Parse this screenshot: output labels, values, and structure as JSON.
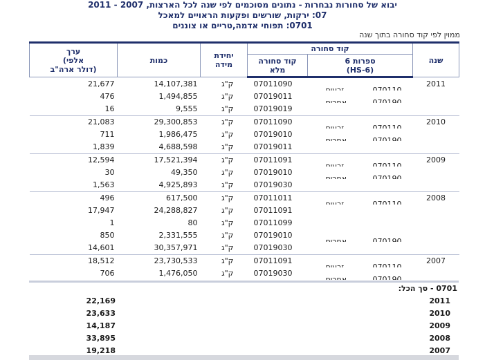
{
  "titles": {
    "line1": "יבוא של סחורות נבחרות - נתונים מסוכמים לפי שנה לכל הארצות, 2007 - 2011",
    "line2": "07: ירקות, שורשים ופקעות הראויים למאכל",
    "line3": "0701: תפוחי אדמה,טריים או צוננים"
  },
  "sort_note": "ממוין לפי קוד סחורה בתוך שנה",
  "header": {
    "value": "ערך\n(אלפי\nדולר ארה\"ב)",
    "quantity": "כמות",
    "unit": "יחידת\nמידה",
    "commodity_code": "קוד סחורה",
    "full_code": "קוד סחורה\nמלא",
    "hs6": "6 ספרות\n(HS-6)",
    "year": "שנה"
  },
  "groups": [
    {
      "year": "2011",
      "rows": [
        {
          "value": "21,677",
          "qty": "14,107,381",
          "unit": "ק\"ג",
          "code8": "07011090",
          "desc": "זרעים",
          "code6": "070110"
        },
        {
          "value": "476",
          "qty": "1,494,855",
          "unit": "ק\"ג",
          "code8": "07019011",
          "desc": "אחרים",
          "code6": "070190"
        },
        {
          "value": "16",
          "qty": "9,555",
          "unit": "ק\"ג",
          "code8": "07019019",
          "desc": "",
          "code6": ""
        }
      ]
    },
    {
      "year": "2010",
      "rows": [
        {
          "value": "21,083",
          "qty": "29,300,853",
          "unit": "ק\"ג",
          "code8": "07011090",
          "desc": "זרעים",
          "code6": "070110"
        },
        {
          "value": "711",
          "qty": "1,986,475",
          "unit": "ק\"ג",
          "code8": "07019010",
          "desc": "אחרים",
          "code6": "070190"
        },
        {
          "value": "1,839",
          "qty": "4,688,598",
          "unit": "ק\"ג",
          "code8": "07019011",
          "desc": "",
          "code6": ""
        }
      ]
    },
    {
      "year": "2009",
      "rows": [
        {
          "value": "12,594",
          "qty": "17,521,394",
          "unit": "ק\"ג",
          "code8": "07011091",
          "desc": "זרעים",
          "code6": "070110"
        },
        {
          "value": "30",
          "qty": "49,350",
          "unit": "ק\"ג",
          "code8": "07019010",
          "desc": "אחרים",
          "code6": "070190"
        },
        {
          "value": "1,563",
          "qty": "4,925,893",
          "unit": "ק\"ג",
          "code8": "07019030",
          "desc": "",
          "code6": ""
        }
      ]
    },
    {
      "year": "2008",
      "rows": [
        {
          "value": "496",
          "qty": "617,500",
          "unit": "ק\"ג",
          "code8": "07011011",
          "desc": "זרעים",
          "code6": "070110"
        },
        {
          "value": "17,947",
          "qty": "24,288,827",
          "unit": "ק\"ג",
          "code8": "07011091",
          "desc": "",
          "code6": ""
        },
        {
          "value": "1",
          "qty": "80",
          "unit": "ק\"ג",
          "code8": "07011099",
          "desc": "",
          "code6": ""
        },
        {
          "value": "850",
          "qty": "2,331,555",
          "unit": "ק\"ג",
          "code8": "07019010",
          "desc": "אחרים",
          "code6": "070190"
        },
        {
          "value": "14,601",
          "qty": "30,357,971",
          "unit": "ק\"ג",
          "code8": "07019030",
          "desc": "",
          "code6": ""
        }
      ]
    },
    {
      "year": "2007",
      "rows": [
        {
          "value": "18,512",
          "qty": "23,730,533",
          "unit": "ק\"ג",
          "code8": "07011091",
          "desc": "זרעים",
          "code6": "070110"
        },
        {
          "value": "706",
          "qty": "1,476,050",
          "unit": "ק\"ג",
          "code8": "07019030",
          "desc": "אחרים",
          "code6": "070190"
        }
      ]
    }
  ],
  "summary": {
    "title": "0701 - סך הכל:",
    "rows": [
      {
        "year": "2011",
        "value": "22,169"
      },
      {
        "year": "2010",
        "value": "23,633"
      },
      {
        "year": "2009",
        "value": "14,187"
      },
      {
        "year": "2008",
        "value": "33,895"
      },
      {
        "year": "2007",
        "value": "19,218"
      }
    ]
  }
}
